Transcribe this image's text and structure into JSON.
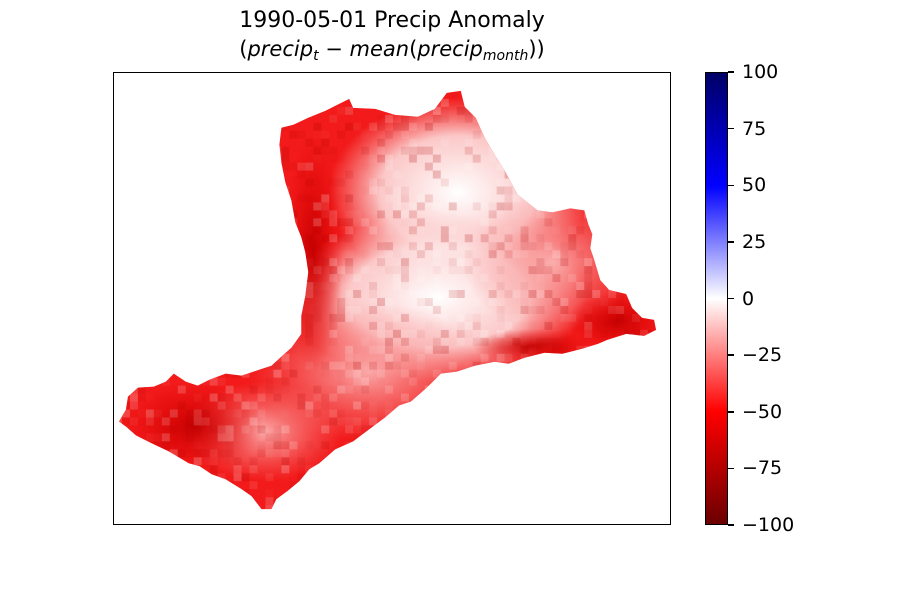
{
  "chart_data": {
    "type": "heatmap",
    "title": "1990-05-01 Precip Anomaly",
    "subtitle_parts": {
      "open": "(",
      "a": "precip",
      "a_sub": "t",
      "minus": " − ",
      "b": "mean",
      "paren_open": "(",
      "c": "precip",
      "c_sub": "month",
      "close": "))"
    },
    "colormap": "seismic_r",
    "colorbar": {
      "vmin": -100,
      "vmax": 100,
      "ticks": [
        100,
        75,
        50,
        25,
        0,
        -25,
        -50,
        -75,
        -100
      ],
      "tick_labels": [
        "100",
        "75",
        "50",
        "25",
        "0",
        "−25",
        "−50",
        "−75",
        "−100"
      ],
      "colors": {
        "-100": "#6b0000",
        "-50": "#ff0000",
        "0": "#ffffff",
        "50": "#0000ff",
        "100": "#000066"
      }
    },
    "axes_ticks": "none",
    "grid": false,
    "region_anomaly_summary": {
      "min_approx": -72,
      "max_approx": 2,
      "dominant_sign": "negative"
    }
  }
}
